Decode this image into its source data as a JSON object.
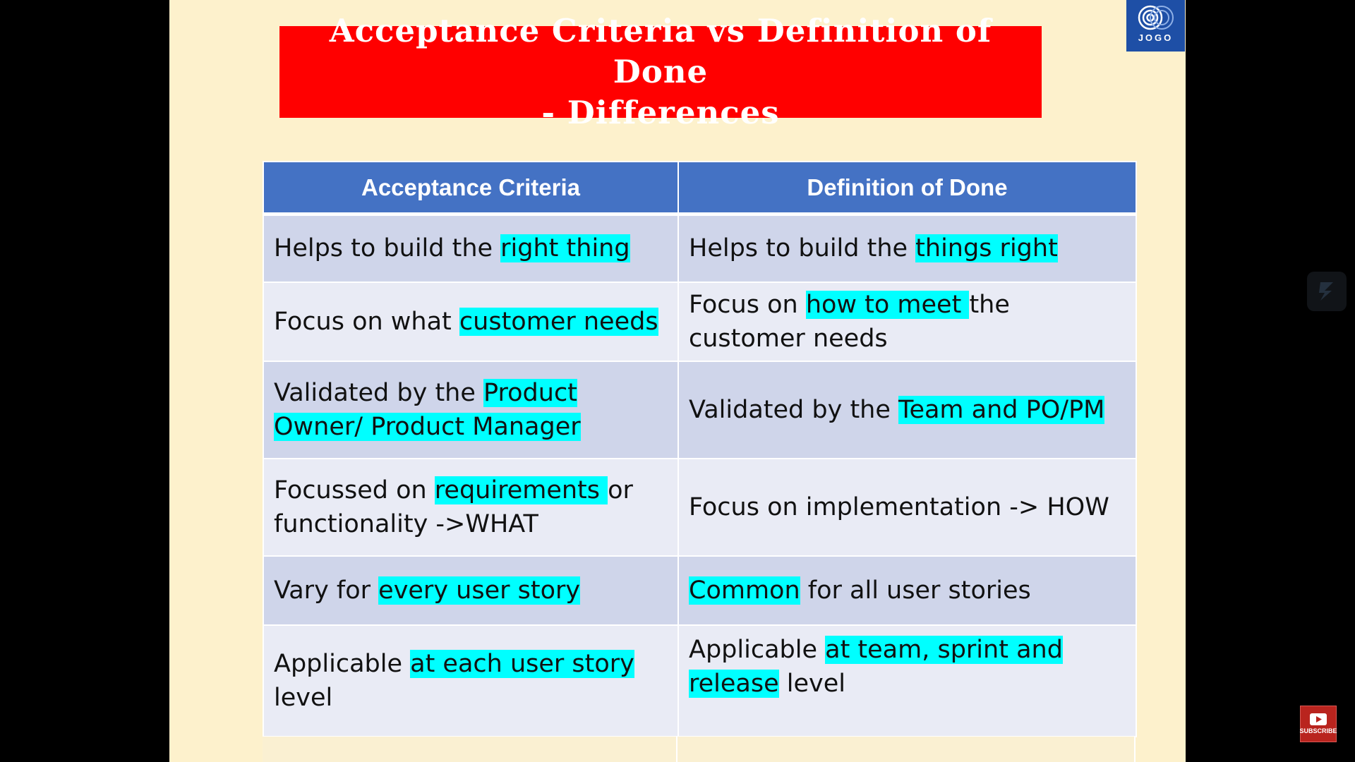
{
  "slide": {
    "title_line1": "Acceptance Criteria vs Definition of Done",
    "title_line2": "- Differences",
    "logo_text": "JOGO",
    "colors": {
      "title_bg": "#ff0000",
      "header_bg": "#4472c4",
      "row_dark": "#cfd5ea",
      "row_light": "#e9ebf5",
      "highlight": "#00ffff",
      "slide_bg": "#fdf1cc"
    }
  },
  "table": {
    "headers": [
      "Acceptance Criteria",
      "Definition of Done"
    ],
    "rows": [
      {
        "ac_a": "Helps to build the ",
        "ac_b": "right thing",
        "dod_a": "Helps to build the ",
        "dod_b": "things right"
      },
      {
        "ac_a": "Focus on what ",
        "ac_b": "customer needs",
        "dod_a": "Focus on ",
        "dod_b": "how to meet ",
        "dod_c": "the customer needs"
      },
      {
        "ac_a": "Validated by the ",
        "ac_b": "Product Owner/ Product Manager",
        "dod_a": "Validated by the ",
        "dod_b": "Team and PO/PM"
      },
      {
        "ac_a": "Focussed on ",
        "ac_b": "requirements ",
        "ac_c": "or functionality ->WHAT",
        "dod_a": "Focus on implementation -> HOW"
      },
      {
        "ac_a": "Vary for ",
        "ac_b": "every user story",
        "dod_b": "Common",
        "dod_c": " for all user stories"
      },
      {
        "ac_a": "Applicable ",
        "ac_b": "at each user story ",
        "ac_c": "level",
        "dod_a": "Applicable ",
        "dod_b": "at team, sprint and release",
        "dod_c": " level"
      }
    ]
  },
  "overlay": {
    "side_icon": "lightning-icon",
    "subscribe_label": "SUBSCRIBE",
    "subscribe_icon": "play-icon"
  }
}
